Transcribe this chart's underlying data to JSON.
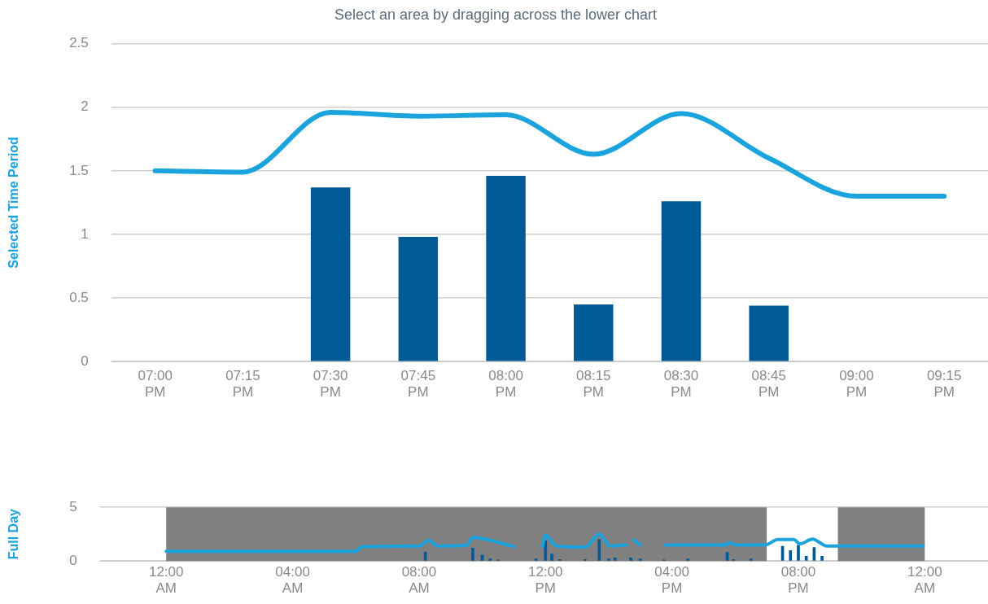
{
  "chart_data": [
    {
      "type": "bar",
      "title": "Select an area by dragging across the lower chart",
      "ylabel": "Selected Time Period",
      "categories": [
        "07:00 PM",
        "07:15 PM",
        "07:30 PM",
        "07:45 PM",
        "08:00 PM",
        "08:15 PM",
        "08:30 PM",
        "08:45 PM",
        "09:00 PM",
        "09:15 PM"
      ],
      "series": [
        {
          "color": "#005a96",
          "values": [
            null,
            null,
            1.37,
            0.98,
            1.46,
            0.45,
            1.26,
            0.44,
            null,
            null
          ]
        },
        {
          "type": "line",
          "color": "#1aa3dc",
          "values": [
            1.5,
            1.49,
            1.96,
            1.93,
            1.94,
            1.63,
            1.95,
            1.6,
            1.3,
            1.3
          ]
        }
      ],
      "ylim": [
        0,
        2.5
      ],
      "yticks": [
        0,
        0.5,
        1,
        1.5,
        2,
        2.5
      ],
      "grid": "y",
      "legend": false,
      "marker": "none",
      "line_style": "solid"
    },
    {
      "type": "bar",
      "ylabel": "Full Day",
      "xlim": [
        -2.1,
        26
      ],
      "xticks": [
        {
          "value": 0,
          "label": "12:00 AM"
        },
        {
          "value": 4,
          "label": "04:00 AM"
        },
        {
          "value": 8,
          "label": "08:00 AM"
        },
        {
          "value": 12,
          "label": "12:00 PM"
        },
        {
          "value": 16,
          "label": "04:00 PM"
        },
        {
          "value": 20,
          "label": "08:00 PM"
        },
        {
          "value": 24,
          "label": "12:00 AM"
        }
      ],
      "series": [
        {
          "color": "#005a96",
          "x": [
            8.2,
            9.7,
            10,
            10.25,
            10.5,
            11.7,
            12,
            12.2,
            12.45,
            13.25,
            13.7,
            14,
            14.2,
            14.7,
            15,
            15.75,
            16.5,
            17.75,
            17.95,
            18.5,
            19.5,
            19.75,
            20,
            20.25,
            20.5,
            20.75
          ],
          "values": [
            0.85,
            1.2,
            0.55,
            0.2,
            0.1,
            0.2,
            1.9,
            0.65,
            0.15,
            0.15,
            2,
            0.2,
            0.3,
            0.3,
            0.2,
            0.1,
            0.2,
            0.8,
            0.15,
            0.2,
            1.37,
            0.98,
            1.46,
            0.45,
            1.26,
            0.44
          ]
        },
        {
          "type": "line",
          "color": "#1aa3dc",
          "x": [
            0,
            6,
            6.2,
            8,
            8.3,
            8.6,
            9.5,
            9.7,
            11,
            11.4,
            11.9,
            12,
            12.35,
            13.25,
            13.7,
            14.05,
            14.55,
            14.7,
            14.8,
            15,
            15.4,
            15.8,
            17.7,
            17.8,
            18.05,
            18.95,
            19.35,
            19.85,
            20.05,
            20.45,
            20.9,
            23.95
          ],
          "values": [
            0.9,
            0.9,
            1.35,
            1.4,
            1.9,
            1.4,
            1.45,
            2.2,
            1.35,
            null,
            1.35,
            2.4,
            1.4,
            1.3,
            2.5,
            1.4,
            1.5,
            null,
            1.95,
            1.5,
            null,
            1.5,
            1.5,
            1.7,
            1.5,
            1.5,
            2,
            2,
            1.6,
            2.05,
            1.4,
            1.4
          ]
        }
      ],
      "bands": [
        {
          "axis": "x",
          "from": 0,
          "to": 19,
          "color": "#808080"
        },
        {
          "axis": "x",
          "from": 21.25,
          "to": 24,
          "color": "#808080"
        }
      ],
      "ylim": [
        0,
        5
      ],
      "yticks": [
        0,
        5
      ],
      "grid": "y",
      "legend": false,
      "marker": "none",
      "line_style": "solid"
    }
  ]
}
